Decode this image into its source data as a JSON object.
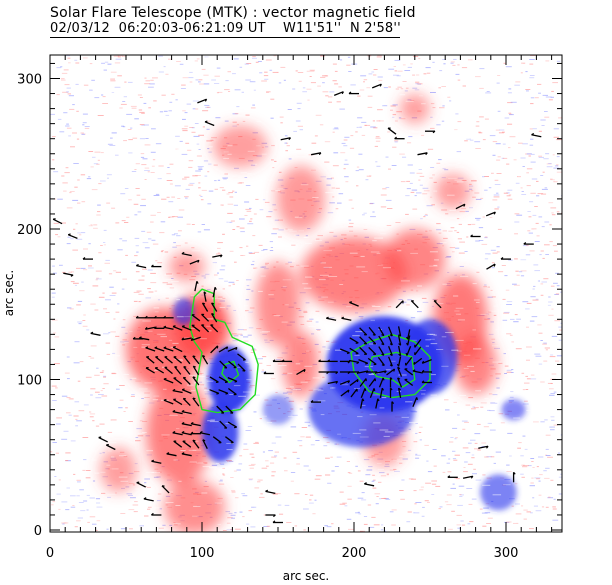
{
  "header": {
    "title": "Solar Flare Telescope (MTK) : vector magnetic field",
    "subtitle": "02/03/12  06:20:03-06:21:09 UT    W11'51''  N 2'58''"
  },
  "colors": {
    "positive": "#ff4a4a",
    "negative": "#2a35ee",
    "contour": "#22dd22",
    "vector": "#000000"
  },
  "chart_data": {
    "type": "heatmap",
    "title": "Solar Flare Telescope (MTK) : vector magnetic field",
    "subtitle": "02/03/12  06:20:03-06:21:09 UT    W11'51''  N 2'58''",
    "xlabel": "arc sec.",
    "ylabel": "arc sec.",
    "xlim": [
      0,
      337
    ],
    "ylim": [
      0,
      316
    ],
    "xticks": [
      0,
      100,
      200,
      300
    ],
    "yticks": [
      0,
      100,
      200,
      300
    ],
    "xtick_labels": [
      "0",
      "100",
      "200",
      "300"
    ],
    "ytick_labels": [
      "0",
      "100",
      "200",
      "300"
    ],
    "positive_regions": [
      {
        "x": 100,
        "y": 135,
        "rx": 18,
        "ry": 22,
        "strength": 1.0
      },
      {
        "x": 75,
        "y": 120,
        "rx": 25,
        "ry": 28,
        "strength": 0.7
      },
      {
        "x": 85,
        "y": 65,
        "rx": 22,
        "ry": 35,
        "strength": 0.6
      },
      {
        "x": 95,
        "y": 15,
        "rx": 20,
        "ry": 18,
        "strength": 0.45
      },
      {
        "x": 150,
        "y": 150,
        "rx": 15,
        "ry": 28,
        "strength": 0.45
      },
      {
        "x": 165,
        "y": 110,
        "rx": 12,
        "ry": 22,
        "strength": 0.5
      },
      {
        "x": 200,
        "y": 170,
        "rx": 35,
        "ry": 25,
        "strength": 0.6
      },
      {
        "x": 240,
        "y": 180,
        "rx": 20,
        "ry": 20,
        "strength": 0.55
      },
      {
        "x": 270,
        "y": 140,
        "rx": 18,
        "ry": 30,
        "strength": 0.65
      },
      {
        "x": 280,
        "y": 110,
        "rx": 14,
        "ry": 20,
        "strength": 0.55
      },
      {
        "x": 165,
        "y": 220,
        "rx": 16,
        "ry": 22,
        "strength": 0.35
      },
      {
        "x": 125,
        "y": 255,
        "rx": 18,
        "ry": 14,
        "strength": 0.3
      },
      {
        "x": 90,
        "y": 175,
        "rx": 12,
        "ry": 10,
        "strength": 0.35
      },
      {
        "x": 240,
        "y": 280,
        "rx": 10,
        "ry": 10,
        "strength": 0.3
      },
      {
        "x": 265,
        "y": 225,
        "rx": 12,
        "ry": 12,
        "strength": 0.3
      },
      {
        "x": 220,
        "y": 60,
        "rx": 14,
        "ry": 18,
        "strength": 0.3
      },
      {
        "x": 45,
        "y": 40,
        "rx": 12,
        "ry": 15,
        "strength": 0.3
      }
    ],
    "negative_regions": [
      {
        "x": 220,
        "y": 110,
        "rx": 38,
        "ry": 32,
        "strength": 1.0
      },
      {
        "x": 205,
        "y": 80,
        "rx": 35,
        "ry": 25,
        "strength": 0.6
      },
      {
        "x": 250,
        "y": 115,
        "rx": 18,
        "ry": 25,
        "strength": 0.7
      },
      {
        "x": 118,
        "y": 100,
        "rx": 14,
        "ry": 22,
        "strength": 1.0
      },
      {
        "x": 112,
        "y": 65,
        "rx": 12,
        "ry": 20,
        "strength": 0.85
      },
      {
        "x": 88,
        "y": 145,
        "rx": 7,
        "ry": 9,
        "strength": 0.5
      },
      {
        "x": 305,
        "y": 80,
        "rx": 8,
        "ry": 7,
        "strength": 0.4
      },
      {
        "x": 295,
        "y": 25,
        "rx": 12,
        "ry": 12,
        "strength": 0.45
      },
      {
        "x": 150,
        "y": 80,
        "rx": 10,
        "ry": 10,
        "strength": 0.25
      }
    ],
    "contours": [
      {
        "name": "left-outer",
        "points": [
          [
            95,
            155
          ],
          [
            100,
            160
          ],
          [
            108,
            157
          ],
          [
            108,
            140
          ],
          [
            115,
            138
          ],
          [
            120,
            128
          ],
          [
            133,
            122
          ],
          [
            137,
            110
          ],
          [
            135,
            90
          ],
          [
            125,
            80
          ],
          [
            110,
            78
          ],
          [
            100,
            80
          ],
          [
            96,
            95
          ],
          [
            100,
            118
          ],
          [
            95,
            125
          ],
          [
            92,
            135
          ],
          [
            95,
            155
          ]
        ]
      },
      {
        "name": "left-inner",
        "points": [
          [
            115,
            110
          ],
          [
            121,
            112
          ],
          [
            124,
            103
          ],
          [
            118,
            98
          ],
          [
            113,
            104
          ],
          [
            115,
            110
          ]
        ]
      },
      {
        "name": "right-outer",
        "points": [
          [
            200,
            105
          ],
          [
            198,
            118
          ],
          [
            210,
            125
          ],
          [
            225,
            130
          ],
          [
            240,
            125
          ],
          [
            250,
            115
          ],
          [
            250,
            100
          ],
          [
            240,
            90
          ],
          [
            225,
            88
          ],
          [
            210,
            92
          ],
          [
            200,
            105
          ]
        ]
      },
      {
        "name": "right-inner",
        "points": [
          [
            210,
            108
          ],
          [
            212,
            115
          ],
          [
            228,
            118
          ],
          [
            238,
            115
          ],
          [
            240,
            100
          ],
          [
            232,
            95
          ],
          [
            225,
            100
          ],
          [
            215,
            102
          ],
          [
            210,
            108
          ]
        ]
      }
    ],
    "vectors": [
      [
        58,
        127,
        -6,
        0
      ],
      [
        62,
        127,
        -6,
        1
      ],
      [
        66,
        120,
        -6,
        2
      ],
      [
        72,
        120,
        -6,
        2
      ],
      [
        78,
        120,
        -6,
        2
      ],
      [
        84,
        120,
        -6,
        3
      ],
      [
        90,
        127,
        -6,
        -1
      ],
      [
        96,
        127,
        -6,
        -2
      ],
      [
        66,
        113,
        -5,
        4
      ],
      [
        72,
        113,
        -5,
        4
      ],
      [
        78,
        113,
        -5,
        4
      ],
      [
        84,
        113,
        -5,
        4
      ],
      [
        90,
        113,
        -4,
        5
      ],
      [
        96,
        113,
        -4,
        5
      ],
      [
        102,
        113,
        -3,
        5
      ],
      [
        66,
        106,
        -5,
        3
      ],
      [
        72,
        106,
        -5,
        3
      ],
      [
        78,
        106,
        -5,
        4
      ],
      [
        84,
        106,
        -4,
        5
      ],
      [
        90,
        106,
        -4,
        5
      ],
      [
        96,
        106,
        -3,
        5
      ],
      [
        66,
        134,
        -5,
        -1
      ],
      [
        72,
        134,
        -5,
        0
      ],
      [
        78,
        134,
        -5,
        1
      ],
      [
        84,
        134,
        -5,
        2
      ],
      [
        90,
        134,
        -5,
        2
      ],
      [
        96,
        134,
        -4,
        3
      ],
      [
        102,
        134,
        -4,
        4
      ],
      [
        108,
        134,
        -4,
        4
      ],
      [
        60,
        141,
        -5,
        0
      ],
      [
        66,
        141,
        -5,
        0
      ],
      [
        72,
        141,
        -5,
        0
      ],
      [
        78,
        141,
        -5,
        0
      ],
      [
        96,
        141,
        -4,
        3
      ],
      [
        102,
        141,
        -4,
        4
      ],
      [
        108,
        141,
        -3,
        5
      ],
      [
        102,
        148,
        -3,
        5
      ],
      [
        108,
        148,
        -3,
        5
      ],
      [
        102,
        155,
        -1,
        5
      ],
      [
        108,
        158,
        1,
        5
      ],
      [
        96,
        162,
        1,
        5
      ],
      [
        78,
        99,
        -5,
        2
      ],
      [
        84,
        99,
        -4,
        3
      ],
      [
        90,
        99,
        -4,
        4
      ],
      [
        96,
        99,
        -3,
        4
      ],
      [
        84,
        92,
        -5,
        1
      ],
      [
        90,
        92,
        -5,
        2
      ],
      [
        78,
        85,
        -5,
        2
      ],
      [
        84,
        85,
        -5,
        3
      ],
      [
        90,
        85,
        -4,
        4
      ],
      [
        96,
        85,
        -3,
        4
      ],
      [
        84,
        78,
        -5,
        1
      ],
      [
        90,
        78,
        -5,
        1
      ],
      [
        90,
        70,
        -5,
        1
      ],
      [
        96,
        70,
        -5,
        1
      ],
      [
        84,
        64,
        -5,
        1
      ],
      [
        90,
        64,
        -5,
        1
      ],
      [
        96,
        64,
        -5,
        0
      ],
      [
        102,
        64,
        -5,
        1
      ],
      [
        84,
        57,
        -4,
        3
      ],
      [
        90,
        57,
        -4,
        3
      ],
      [
        96,
        57,
        -3,
        4
      ],
      [
        102,
        57,
        -2,
        4
      ],
      [
        80,
        50,
        -5,
        1
      ],
      [
        90,
        50,
        -5,
        1
      ],
      [
        108,
        120,
        4,
        4
      ],
      [
        114,
        120,
        5,
        3
      ],
      [
        120,
        120,
        5,
        2
      ],
      [
        126,
        115,
        4,
        -3
      ],
      [
        114,
        110,
        4,
        -4
      ],
      [
        120,
        110,
        5,
        -4
      ],
      [
        126,
        108,
        4,
        -4
      ],
      [
        108,
        100,
        5,
        -3
      ],
      [
        114,
        100,
        5,
        -3
      ],
      [
        120,
        100,
        5,
        -2
      ],
      [
        108,
        92,
        5,
        -2
      ],
      [
        114,
        92,
        5,
        -2
      ],
      [
        120,
        92,
        4,
        -3
      ],
      [
        112,
        80,
        4,
        -4
      ],
      [
        118,
        80,
        4,
        -4
      ],
      [
        114,
        70,
        4,
        -4
      ],
      [
        120,
        70,
        5,
        -3
      ],
      [
        110,
        60,
        4,
        -3
      ],
      [
        118,
        60,
        4,
        -3
      ],
      [
        206,
        132,
        4,
        -4
      ],
      [
        212,
        132,
        4,
        -5
      ],
      [
        218,
        132,
        3,
        -5
      ],
      [
        224,
        132,
        2,
        -5
      ],
      [
        230,
        132,
        1,
        -5
      ],
      [
        236,
        130,
        -1,
        -5
      ],
      [
        200,
        126,
        5,
        -3
      ],
      [
        206,
        126,
        4,
        -4
      ],
      [
        212,
        126,
        4,
        -4
      ],
      [
        218,
        126,
        3,
        -5
      ],
      [
        224,
        126,
        2,
        -5
      ],
      [
        230,
        126,
        1,
        -5
      ],
      [
        236,
        126,
        -1,
        -5
      ],
      [
        242,
        124,
        -3,
        -4
      ],
      [
        194,
        119,
        5,
        -2
      ],
      [
        200,
        119,
        5,
        -3
      ],
      [
        206,
        119,
        4,
        -4
      ],
      [
        212,
        119,
        4,
        -4
      ],
      [
        218,
        119,
        3,
        -5
      ],
      [
        224,
        119,
        2,
        -5
      ],
      [
        230,
        119,
        1,
        -5
      ],
      [
        236,
        119,
        -2,
        -5
      ],
      [
        242,
        119,
        -3,
        -4
      ],
      [
        180,
        112,
        -5,
        0
      ],
      [
        186,
        112,
        -5,
        0
      ],
      [
        194,
        112,
        5,
        0
      ],
      [
        200,
        112,
        5,
        -1
      ],
      [
        206,
        112,
        5,
        -2
      ],
      [
        212,
        112,
        4,
        -3
      ],
      [
        218,
        112,
        3,
        -4
      ],
      [
        224,
        112,
        2,
        -5
      ],
      [
        230,
        112,
        -1,
        -5
      ],
      [
        236,
        112,
        -3,
        -4
      ],
      [
        242,
        112,
        -4,
        -3
      ],
      [
        248,
        112,
        -5,
        -2
      ],
      [
        180,
        105,
        5,
        0
      ],
      [
        186,
        105,
        5,
        0
      ],
      [
        194,
        105,
        5,
        0
      ],
      [
        200,
        105,
        5,
        0
      ],
      [
        206,
        105,
        5,
        1
      ],
      [
        212,
        105,
        5,
        0
      ],
      [
        218,
        105,
        5,
        1
      ],
      [
        224,
        105,
        4,
        3
      ],
      [
        230,
        105,
        -2,
        5
      ],
      [
        236,
        105,
        -4,
        3
      ],
      [
        242,
        105,
        -5,
        1
      ],
      [
        248,
        105,
        -5,
        0
      ],
      [
        186,
        98,
        5,
        1
      ],
      [
        194,
        98,
        5,
        2
      ],
      [
        200,
        98,
        4,
        3
      ],
      [
        206,
        98,
        3,
        4
      ],
      [
        212,
        98,
        3,
        4
      ],
      [
        218,
        98,
        2,
        5
      ],
      [
        224,
        98,
        0,
        5
      ],
      [
        230,
        98,
        -2,
        5
      ],
      [
        236,
        98,
        -4,
        3
      ],
      [
        248,
        98,
        -5,
        0
      ],
      [
        194,
        91,
        4,
        3
      ],
      [
        200,
        91,
        3,
        4
      ],
      [
        206,
        91,
        2,
        5
      ],
      [
        212,
        91,
        2,
        5
      ],
      [
        218,
        91,
        1,
        5
      ],
      [
        224,
        91,
        0,
        5
      ],
      [
        230,
        91,
        -1,
        5
      ],
      [
        205,
        84,
        1,
        5
      ],
      [
        215,
        84,
        1,
        5
      ],
      [
        225,
        82,
        0,
        5
      ],
      [
        185,
        140,
        -5,
        1
      ],
      [
        195,
        140,
        -5,
        1
      ],
      [
        200,
        150,
        -5,
        2
      ],
      [
        230,
        150,
        4,
        4
      ],
      [
        240,
        150,
        -3,
        3
      ],
      [
        150,
        112,
        -5,
        0
      ],
      [
        156,
        112,
        -5,
        0
      ],
      [
        144,
        104,
        -5,
        0
      ],
      [
        60,
        175,
        -5,
        1
      ],
      [
        70,
        175,
        -5,
        0
      ],
      [
        90,
        183,
        -5,
        1
      ],
      [
        95,
        178,
        5,
        2
      ],
      [
        110,
        182,
        5,
        1
      ],
      [
        100,
        285,
        5,
        2
      ],
      [
        105,
        270,
        -5,
        2
      ],
      [
        155,
        260,
        5,
        1
      ],
      [
        175,
        250,
        5,
        1
      ],
      [
        190,
        290,
        5,
        2
      ],
      [
        200,
        290,
        -5,
        0
      ],
      [
        215,
        295,
        5,
        2
      ],
      [
        225,
        265,
        -4,
        3
      ],
      [
        230,
        260,
        -5,
        0
      ],
      [
        245,
        250,
        5,
        1
      ],
      [
        250,
        265,
        5,
        0
      ],
      [
        320,
        262,
        -5,
        1
      ],
      [
        315,
        190,
        -5,
        0
      ],
      [
        300,
        180,
        -5,
        0
      ],
      [
        290,
        175,
        5,
        3
      ],
      [
        5,
        205,
        -4,
        2
      ],
      [
        15,
        195,
        -5,
        2
      ],
      [
        25,
        180,
        -5,
        0
      ],
      [
        30,
        130,
        -5,
        1
      ],
      [
        12,
        170,
        5,
        -1
      ],
      [
        35,
        60,
        -4,
        2
      ],
      [
        40,
        55,
        -4,
        2
      ],
      [
        60,
        30,
        -4,
        2
      ],
      [
        70,
        45,
        -5,
        1
      ],
      [
        65,
        20,
        -5,
        1
      ],
      [
        70,
        10,
        -5,
        0
      ],
      [
        76,
        27,
        -3,
        3
      ],
      [
        145,
        25,
        -5,
        1
      ],
      [
        150,
        5,
        -5,
        0
      ],
      [
        145,
        10,
        5,
        0
      ],
      [
        255,
        150,
        -3,
        3
      ],
      [
        285,
        55,
        5,
        1
      ],
      [
        275,
        35,
        5,
        1
      ],
      [
        265,
        35,
        -5,
        0
      ],
      [
        305,
        35,
        0,
        5
      ],
      [
        210,
        30,
        -5,
        1
      ],
      [
        280,
        195,
        -5,
        0
      ],
      [
        290,
        210,
        5,
        2
      ],
      [
        270,
        215,
        4,
        2
      ],
      [
        240,
        85,
        2,
        5
      ],
      [
        175,
        85,
        -5,
        0
      ],
      [
        165,
        105,
        5,
        3
      ]
    ]
  }
}
